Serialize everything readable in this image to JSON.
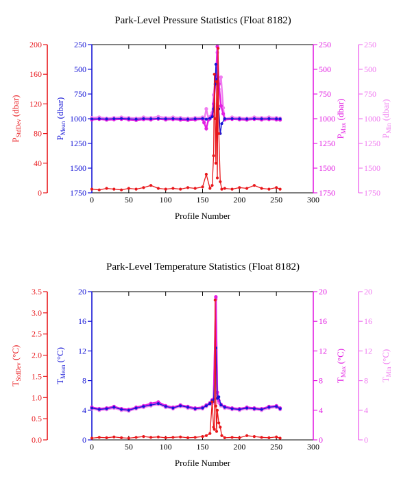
{
  "colors": {
    "stddev": "#e8161a",
    "mean": "#1515d6",
    "max": "#e21ee2",
    "min": "#f07cf0",
    "axis": "#000000"
  },
  "chart_data": [
    {
      "type": "line",
      "title": "Park-Level Pressure Statistics (Float 8182)",
      "xlabel": "Profile Number",
      "xlim": [
        0,
        300
      ],
      "xticks": [
        0,
        50,
        100,
        150,
        200,
        250,
        300
      ],
      "axes": [
        {
          "key": "stddev",
          "side": "left",
          "label_main": "P",
          "label_sub": "StdDev",
          "label_unit": " (dbar)",
          "lim": [
            0,
            200
          ],
          "inverted": false,
          "ticks": [
            0,
            40,
            80,
            120,
            160,
            200
          ],
          "tick_labels": [
            "0",
            "40",
            "80",
            "120",
            "160",
            "200"
          ],
          "color_key": "stddev"
        },
        {
          "key": "mean",
          "side": "left",
          "label_main": "P",
          "label_sub": "Mean",
          "label_unit": " (dbar)",
          "lim": [
            1750,
            250
          ],
          "inverted": true,
          "ticks": [
            250,
            500,
            750,
            1000,
            1250,
            1500,
            1750
          ],
          "tick_labels": [
            "250",
            "500",
            "750",
            "1000",
            "1250",
            "1500",
            "1750"
          ],
          "color_key": "mean"
        },
        {
          "key": "max",
          "side": "right",
          "label_main": "P",
          "label_sub": "Max",
          "label_unit": " (dbar)",
          "lim": [
            1750,
            250
          ],
          "inverted": true,
          "ticks": [
            250,
            500,
            750,
            1000,
            1250,
            1500,
            1750
          ],
          "tick_labels": [
            "250",
            "500",
            "750",
            "1000",
            "1250",
            "1500",
            "1750"
          ],
          "color_key": "max"
        },
        {
          "key": "min",
          "side": "right",
          "label_main": "P",
          "label_sub": "Min",
          "label_unit": " (dbar)",
          "lim": [
            1750,
            250
          ],
          "inverted": true,
          "ticks": [
            250,
            500,
            750,
            1000,
            1250,
            1500,
            1750
          ],
          "tick_labels": [
            "250",
            "500",
            "750",
            "1000",
            "1250",
            "1500",
            "1750"
          ],
          "color_key": "min"
        }
      ],
      "series": [
        {
          "axis": "min",
          "x": [
            0,
            10,
            20,
            30,
            40,
            50,
            60,
            70,
            80,
            90,
            100,
            110,
            120,
            130,
            140,
            150,
            152,
            155,
            158,
            160,
            163,
            165,
            168,
            170,
            172,
            175,
            178,
            180,
            190,
            200,
            210,
            220,
            230,
            240,
            250,
            255
          ],
          "y": [
            990,
            985,
            995,
            990,
            985,
            990,
            995,
            985,
            990,
            980,
            990,
            985,
            990,
            995,
            990,
            985,
            1020,
            900,
            1000,
            980,
            940,
            760,
            560,
            330,
            700,
            580,
            890,
            1000,
            985,
            990,
            995,
            985,
            990,
            985,
            990,
            995
          ]
        },
        {
          "axis": "max",
          "x": [
            0,
            10,
            20,
            30,
            40,
            50,
            60,
            70,
            80,
            90,
            100,
            110,
            120,
            130,
            140,
            150,
            152,
            155,
            158,
            160,
            163,
            165,
            168,
            170,
            172,
            175,
            178,
            180,
            190,
            200,
            210,
            220,
            230,
            240,
            250,
            255
          ],
          "y": [
            1010,
            1005,
            1012,
            1008,
            1004,
            1010,
            1015,
            1006,
            1010,
            1002,
            1010,
            1006,
            1012,
            1015,
            1010,
            1005,
            1040,
            1100,
            1010,
            1000,
            970,
            850,
            600,
            270,
            650,
            870,
            950,
            1010,
            1005,
            1008,
            1012,
            1005,
            1010,
            1006,
            1010,
            1012
          ]
        },
        {
          "axis": "mean",
          "x": [
            0,
            10,
            20,
            30,
            40,
            50,
            60,
            70,
            80,
            90,
            100,
            110,
            120,
            130,
            140,
            150,
            155,
            160,
            163,
            165,
            167,
            168,
            170,
            172,
            174,
            176,
            180,
            190,
            200,
            210,
            220,
            230,
            240,
            250,
            255
          ],
          "y": [
            1002,
            1000,
            1003,
            1000,
            998,
            1001,
            1004,
            999,
            1001,
            997,
            1001,
            999,
            1002,
            1004,
            1001,
            998,
            1005,
            995,
            980,
            900,
            650,
            450,
            600,
            900,
            1150,
            1050,
            1000,
            999,
            1001,
            1003,
            999,
            1001,
            999,
            1001,
            1002
          ]
        },
        {
          "axis": "stddev",
          "x": [
            0,
            10,
            20,
            30,
            40,
            50,
            60,
            70,
            80,
            90,
            100,
            110,
            120,
            130,
            140,
            150,
            155,
            160,
            163,
            165,
            166,
            167,
            168,
            169,
            170,
            171,
            172,
            174,
            176,
            180,
            190,
            200,
            210,
            220,
            230,
            240,
            250,
            255
          ],
          "y": [
            5,
            4,
            6,
            5,
            4,
            6,
            5,
            7,
            10,
            6,
            5,
            6,
            5,
            7,
            6,
            8,
            25,
            6,
            10,
            50,
            160,
            100,
            40,
            150,
            20,
            195,
            80,
            15,
            5,
            6,
            5,
            7,
            6,
            10,
            6,
            5,
            7,
            5
          ]
        }
      ]
    },
    {
      "type": "line",
      "title": "Park-Level Temperature Statistics (Float 8182)",
      "xlabel": "Profile Number",
      "xlim": [
        0,
        300
      ],
      "xticks": [
        0,
        50,
        100,
        150,
        200,
        250,
        300
      ],
      "axes": [
        {
          "key": "stddev",
          "side": "left",
          "label_main": "T",
          "label_sub": "StdDev",
          "label_unit": " (°C)",
          "lim": [
            0,
            3.5
          ],
          "inverted": false,
          "ticks": [
            0,
            0.5,
            1,
            1.5,
            2,
            2.5,
            3,
            3.5
          ],
          "tick_labels": [
            "0.0",
            "0.5",
            "1.0",
            "1.5",
            "2.0",
            "2.5",
            "3.0",
            "3.5"
          ],
          "color_key": "stddev"
        },
        {
          "key": "mean",
          "side": "left",
          "label_main": "T",
          "label_sub": "Mean",
          "label_unit": " (°C)",
          "lim": [
            0,
            20
          ],
          "inverted": false,
          "ticks": [
            0,
            4,
            8,
            12,
            16,
            20
          ],
          "tick_labels": [
            "0",
            "4",
            "8",
            "12",
            "16",
            "20"
          ],
          "color_key": "mean"
        },
        {
          "key": "max",
          "side": "right",
          "label_main": "T",
          "label_sub": "Max",
          "label_unit": " (°C)",
          "lim": [
            0,
            20
          ],
          "inverted": false,
          "ticks": [
            0,
            4,
            8,
            12,
            16,
            20
          ],
          "tick_labels": [
            "0",
            "4",
            "8",
            "12",
            "16",
            "20"
          ],
          "color_key": "max"
        },
        {
          "key": "min",
          "side": "right",
          "label_main": "T",
          "label_sub": "Min",
          "label_unit": " (°C)",
          "lim": [
            0,
            20
          ],
          "inverted": false,
          "ticks": [
            0,
            4,
            8,
            12,
            16,
            20
          ],
          "tick_labels": [
            "0",
            "4",
            "8",
            "12",
            "16",
            "20"
          ],
          "color_key": "min"
        }
      ],
      "series": [
        {
          "axis": "min",
          "x": [
            0,
            10,
            20,
            30,
            40,
            50,
            60,
            70,
            80,
            90,
            100,
            110,
            120,
            130,
            140,
            150,
            155,
            160,
            163,
            165,
            168,
            170,
            172,
            175,
            180,
            190,
            200,
            210,
            220,
            230,
            240,
            250,
            255
          ],
          "y": [
            4.2,
            4.0,
            4.1,
            4.3,
            4.0,
            3.9,
            4.2,
            4.4,
            4.6,
            4.8,
            4.4,
            4.2,
            4.5,
            4.3,
            4.1,
            4.2,
            4.5,
            4.8,
            5.2,
            5.0,
            19.0,
            6.0,
            5.0,
            4.6,
            4.3,
            4.1,
            4.0,
            4.2,
            4.1,
            4.0,
            4.3,
            4.4,
            4.1
          ]
        },
        {
          "axis": "max",
          "x": [
            0,
            10,
            20,
            30,
            40,
            50,
            60,
            70,
            80,
            90,
            100,
            110,
            120,
            130,
            140,
            150,
            155,
            160,
            163,
            165,
            168,
            170,
            172,
            175,
            180,
            190,
            200,
            210,
            220,
            230,
            240,
            250,
            255
          ],
          "y": [
            4.4,
            4.2,
            4.3,
            4.5,
            4.2,
            4.1,
            4.4,
            4.6,
            4.9,
            5.1,
            4.6,
            4.4,
            4.7,
            4.5,
            4.3,
            4.4,
            4.7,
            5.0,
            5.4,
            5.5,
            19.3,
            6.4,
            5.3,
            4.8,
            4.5,
            4.3,
            4.2,
            4.4,
            4.3,
            4.2,
            4.5,
            4.6,
            4.3
          ]
        },
        {
          "axis": "mean",
          "x": [
            0,
            10,
            20,
            30,
            40,
            50,
            60,
            70,
            80,
            90,
            100,
            110,
            120,
            130,
            140,
            150,
            155,
            160,
            163,
            165,
            168,
            170,
            172,
            175,
            180,
            190,
            200,
            210,
            220,
            230,
            240,
            250,
            255
          ],
          "y": [
            4.3,
            4.1,
            4.2,
            4.4,
            4.1,
            4.0,
            4.3,
            4.5,
            4.7,
            4.9,
            4.5,
            4.3,
            4.6,
            4.4,
            4.2,
            4.3,
            4.6,
            4.9,
            5.3,
            5.2,
            12.4,
            5.6,
            5.8,
            4.7,
            4.4,
            4.2,
            4.1,
            4.3,
            4.2,
            4.1,
            4.4,
            4.5,
            4.2
          ]
        },
        {
          "axis": "stddev",
          "x": [
            0,
            10,
            20,
            30,
            40,
            50,
            60,
            70,
            80,
            90,
            100,
            110,
            120,
            130,
            140,
            150,
            155,
            160,
            163,
            165,
            166,
            167,
            168,
            169,
            170,
            172,
            174,
            176,
            180,
            190,
            200,
            210,
            220,
            230,
            240,
            250,
            255
          ],
          "y": [
            0.04,
            0.06,
            0.05,
            0.07,
            0.05,
            0.04,
            0.06,
            0.08,
            0.06,
            0.07,
            0.05,
            0.06,
            0.07,
            0.05,
            0.06,
            0.08,
            0.1,
            0.15,
            0.9,
            0.3,
            0.25,
            3.3,
            0.8,
            0.2,
            0.7,
            0.4,
            0.3,
            0.1,
            0.05,
            0.06,
            0.05,
            0.1,
            0.08,
            0.06,
            0.05,
            0.07,
            0.04
          ]
        }
      ]
    }
  ]
}
